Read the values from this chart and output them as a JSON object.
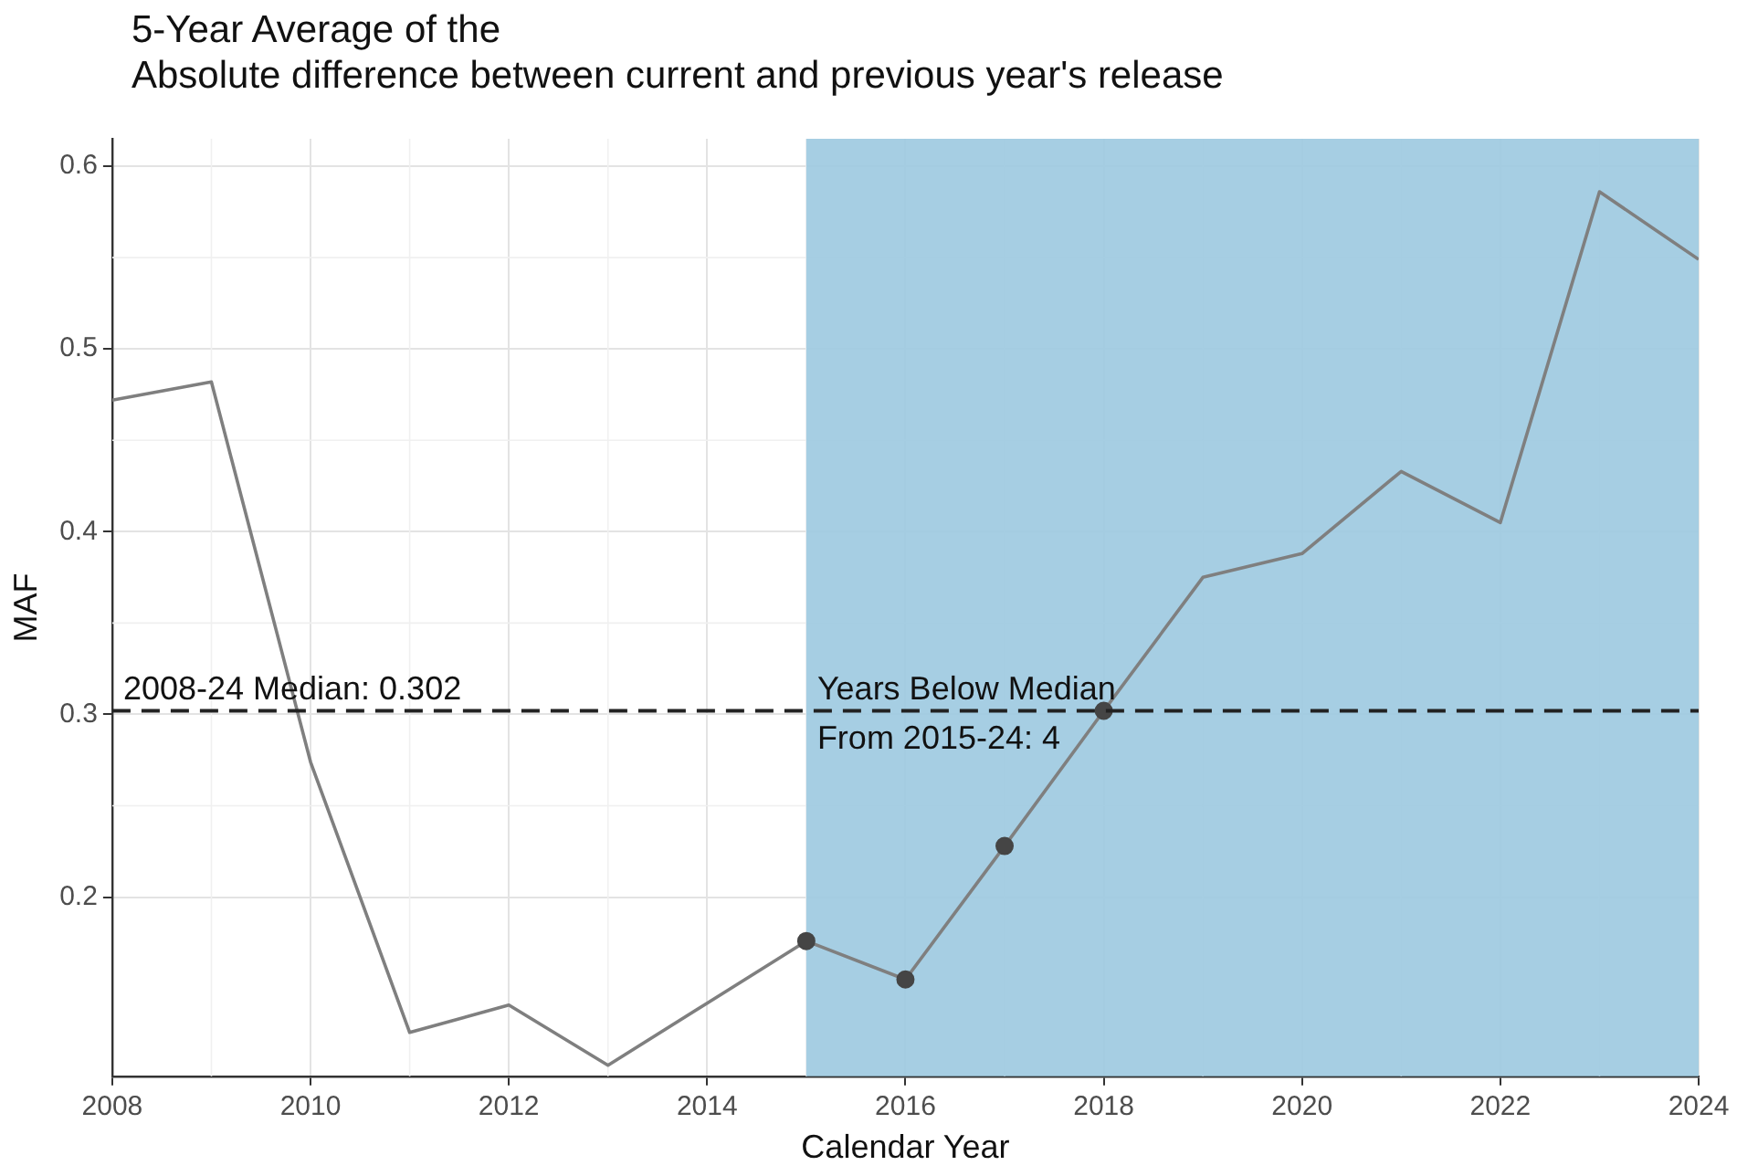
{
  "chart_data": {
    "type": "line",
    "title": "5-Year Average of the\nAbsolute difference between current and previous year's release",
    "xlabel": "Calendar Year",
    "ylabel": "MAF",
    "x": [
      2008,
      2009,
      2010,
      2011,
      2012,
      2013,
      2014,
      2015,
      2016,
      2017,
      2018,
      2019,
      2020,
      2021,
      2022,
      2023,
      2024
    ],
    "series": [
      {
        "color": "#7f7f7f",
        "marker": "none",
        "values": [
          0.472,
          0.482,
          0.274,
          0.126,
          0.141,
          0.108,
          0.142,
          0.176,
          0.155,
          0.228,
          0.302,
          0.375,
          0.388,
          0.433,
          0.405,
          0.586,
          0.549
        ]
      },
      {
        "type": "scatter",
        "color": "#454545",
        "x": [
          2015,
          2016,
          2017,
          2018
        ],
        "values": [
          0.176,
          0.155,
          0.228,
          0.302
        ]
      }
    ],
    "xlim": [
      2008,
      2024
    ],
    "xticks": [
      2008,
      2010,
      2012,
      2014,
      2016,
      2018,
      2020,
      2022,
      2024
    ],
    "ylim": [
      0.102,
      0.615
    ],
    "yticks": [
      0.2,
      0.3,
      0.4,
      0.5,
      0.6
    ],
    "grid": true,
    "legend": false,
    "ref_lines": [
      {
        "axis": "y",
        "value": 0.302,
        "label": "2008-24 Median: 0.302",
        "color": "#222222",
        "line_style": "dashed"
      }
    ],
    "bands": [
      {
        "axis": "x",
        "from": 2015,
        "to": 2024,
        "color": "#9ecae1"
      }
    ],
    "annotations": [
      {
        "text": "Years Below Median\nFrom 2015-24: 4",
        "x": 2015,
        "y": 0.302
      }
    ]
  }
}
